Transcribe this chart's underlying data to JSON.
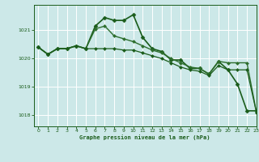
{
  "title": "Graphe pression niveau de la mer (hPa)",
  "background_color": "#cce8e8",
  "grid_color": "#ffffff",
  "line_color": "#1a5c1a",
  "xlim": [
    -0.5,
    23
  ],
  "ylim": [
    1017.6,
    1021.9
  ],
  "yticks": [
    1018,
    1019,
    1020,
    1021
  ],
  "xticks": [
    0,
    1,
    2,
    3,
    4,
    5,
    6,
    7,
    8,
    9,
    10,
    11,
    12,
    13,
    14,
    15,
    16,
    17,
    18,
    19,
    20,
    21,
    22,
    23
  ],
  "series": [
    {
      "x": [
        0,
        1,
        2,
        3,
        4,
        5,
        6,
        7,
        8,
        9,
        10,
        11,
        12,
        13,
        14,
        15,
        16,
        17,
        18,
        19,
        20,
        21,
        22,
        23
      ],
      "y": [
        1020.4,
        1020.15,
        1020.35,
        1020.35,
        1020.45,
        1020.35,
        1021.15,
        1021.45,
        1021.35,
        1021.35,
        1021.55,
        1020.75,
        1020.35,
        1020.25,
        1019.95,
        1019.95,
        1019.65,
        1019.65,
        1019.45,
        1019.9,
        1019.6,
        1019.1,
        1018.15,
        1018.15
      ],
      "color": "#1a5c1a",
      "marker": "D",
      "markersize": 2.5,
      "linewidth": 1.2
    },
    {
      "x": [
        0,
        1,
        2,
        3,
        4,
        5,
        6,
        7,
        8,
        9,
        10,
        11,
        12,
        13,
        14,
        15,
        16,
        17,
        18,
        19,
        20,
        21,
        22,
        23
      ],
      "y": [
        1020.4,
        1020.15,
        1020.35,
        1020.35,
        1020.45,
        1020.35,
        1021.05,
        1021.15,
        1020.8,
        1020.7,
        1020.6,
        1020.45,
        1020.3,
        1020.2,
        1020.0,
        1019.85,
        1019.7,
        1019.65,
        1019.45,
        1019.9,
        1019.85,
        1019.85,
        1019.85,
        1018.1
      ],
      "color": "#2d6e2d",
      "marker": "D",
      "markersize": 2.0,
      "linewidth": 1.0
    },
    {
      "x": [
        0,
        1,
        2,
        3,
        4,
        5,
        6,
        7,
        8,
        9,
        10,
        11,
        12,
        13,
        14,
        15,
        16,
        17,
        18,
        19,
        20,
        21,
        22,
        23
      ],
      "y": [
        1020.4,
        1020.15,
        1020.35,
        1020.35,
        1020.45,
        1020.35,
        1020.35,
        1020.35,
        1020.35,
        1020.3,
        1020.3,
        1020.2,
        1020.1,
        1020.0,
        1019.85,
        1019.7,
        1019.6,
        1019.55,
        1019.4,
        1019.75,
        1019.6,
        1019.6,
        1019.6,
        1018.1
      ],
      "color": "#1a5c1a",
      "marker": "D",
      "markersize": 2.0,
      "linewidth": 0.9
    }
  ]
}
